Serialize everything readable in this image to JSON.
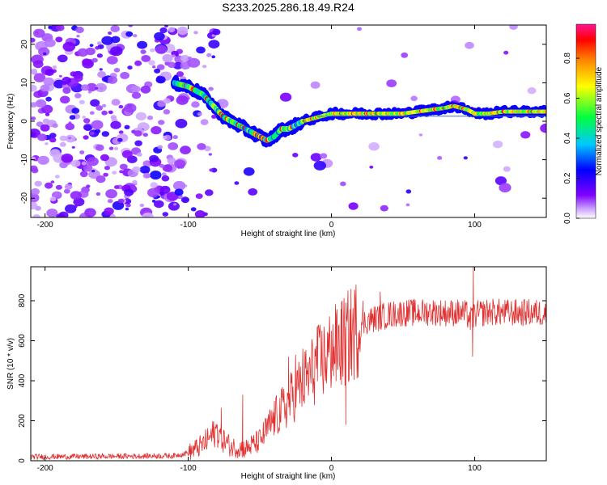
{
  "title": "S233.2025.286.18.49.R24",
  "chart_data": [
    {
      "type": "heatmap",
      "name": "spectrogram",
      "xlabel": "Height of straight line (km)",
      "ylabel": "Frequency (Hz)",
      "xlim": [
        -210,
        150
      ],
      "ylim": [
        -25,
        25
      ],
      "xticks": [
        -200,
        -100,
        0,
        100
      ],
      "yticks": [
        -20,
        -10,
        0,
        10,
        20
      ],
      "ridge": {
        "x": [
          -110,
          -100,
          -90,
          -85,
          -80,
          -75,
          -70,
          -65,
          -60,
          -55,
          -50,
          -45,
          -40,
          -35,
          -30,
          -25,
          -20,
          -15,
          -10,
          -5,
          0,
          10,
          20,
          30,
          40,
          50,
          60,
          70,
          80,
          85,
          90,
          95,
          100,
          110,
          120,
          130,
          140,
          150
        ],
        "freq": [
          10,
          9,
          7,
          5,
          3,
          1,
          0,
          -1,
          -2,
          -3,
          -4,
          -5,
          -4,
          -2,
          -2,
          -1,
          0,
          0.5,
          1,
          1.5,
          2,
          2,
          2,
          2,
          2,
          2,
          2.5,
          3,
          3.5,
          4,
          3.5,
          3,
          2,
          2,
          2.5,
          2.5,
          2.5,
          2.5
        ]
      },
      "reference_line_freq": 1.3,
      "colorbar": {
        "label": "Normalized spectral amplitude",
        "ticks": [
          "0.0",
          "0.2",
          "0.4",
          "0.6",
          "0.8"
        ],
        "range": [
          0,
          0.97
        ]
      }
    },
    {
      "type": "line",
      "name": "snr",
      "xlabel": "Height of straight line (km)",
      "ylabel": "SNR (10 * v/v)",
      "xlim": [
        -210,
        150
      ],
      "ylim": [
        0,
        970
      ],
      "xticks": [
        -200,
        -100,
        0,
        100
      ],
      "yticks": [
        0,
        200,
        400,
        600,
        800
      ],
      "color": "#e03030",
      "envelope": {
        "x": [
          -210,
          -150,
          -110,
          -100,
          -90,
          -80,
          -75,
          -70,
          -60,
          -50,
          -40,
          -30,
          -25,
          -20,
          -15,
          -10,
          -5,
          0,
          5,
          10,
          15,
          20,
          25,
          30,
          35,
          40,
          50,
          60,
          70,
          80,
          90,
          95,
          97,
          100,
          110,
          120,
          130,
          140,
          150
        ],
        "y": [
          20,
          22,
          25,
          40,
          80,
          150,
          100,
          70,
          60,
          100,
          210,
          290,
          350,
          390,
          430,
          480,
          510,
          550,
          570,
          600,
          640,
          680,
          700,
          710,
          720,
          730,
          740,
          740,
          745,
          740,
          740,
          730,
          700,
          730,
          745,
          740,
          740,
          740,
          740
        ]
      },
      "spikes": [
        {
          "x": -77,
          "y": 265
        },
        {
          "x": -62,
          "y": 330
        },
        {
          "x": -30,
          "y": 520
        },
        {
          "x": -25,
          "y": 530
        },
        {
          "x": -20,
          "y": 560
        },
        {
          "x": -10,
          "y": 670
        },
        {
          "x": 0,
          "y": 650
        },
        {
          "x": 3,
          "y": 700
        },
        {
          "x": 7,
          "y": 790
        },
        {
          "x": 10,
          "y": 180
        },
        {
          "x": 22,
          "y": 800
        },
        {
          "x": 34,
          "y": 845
        },
        {
          "x": 99,
          "y": 975
        },
        {
          "x": 98.5,
          "y": 520
        }
      ]
    }
  ]
}
